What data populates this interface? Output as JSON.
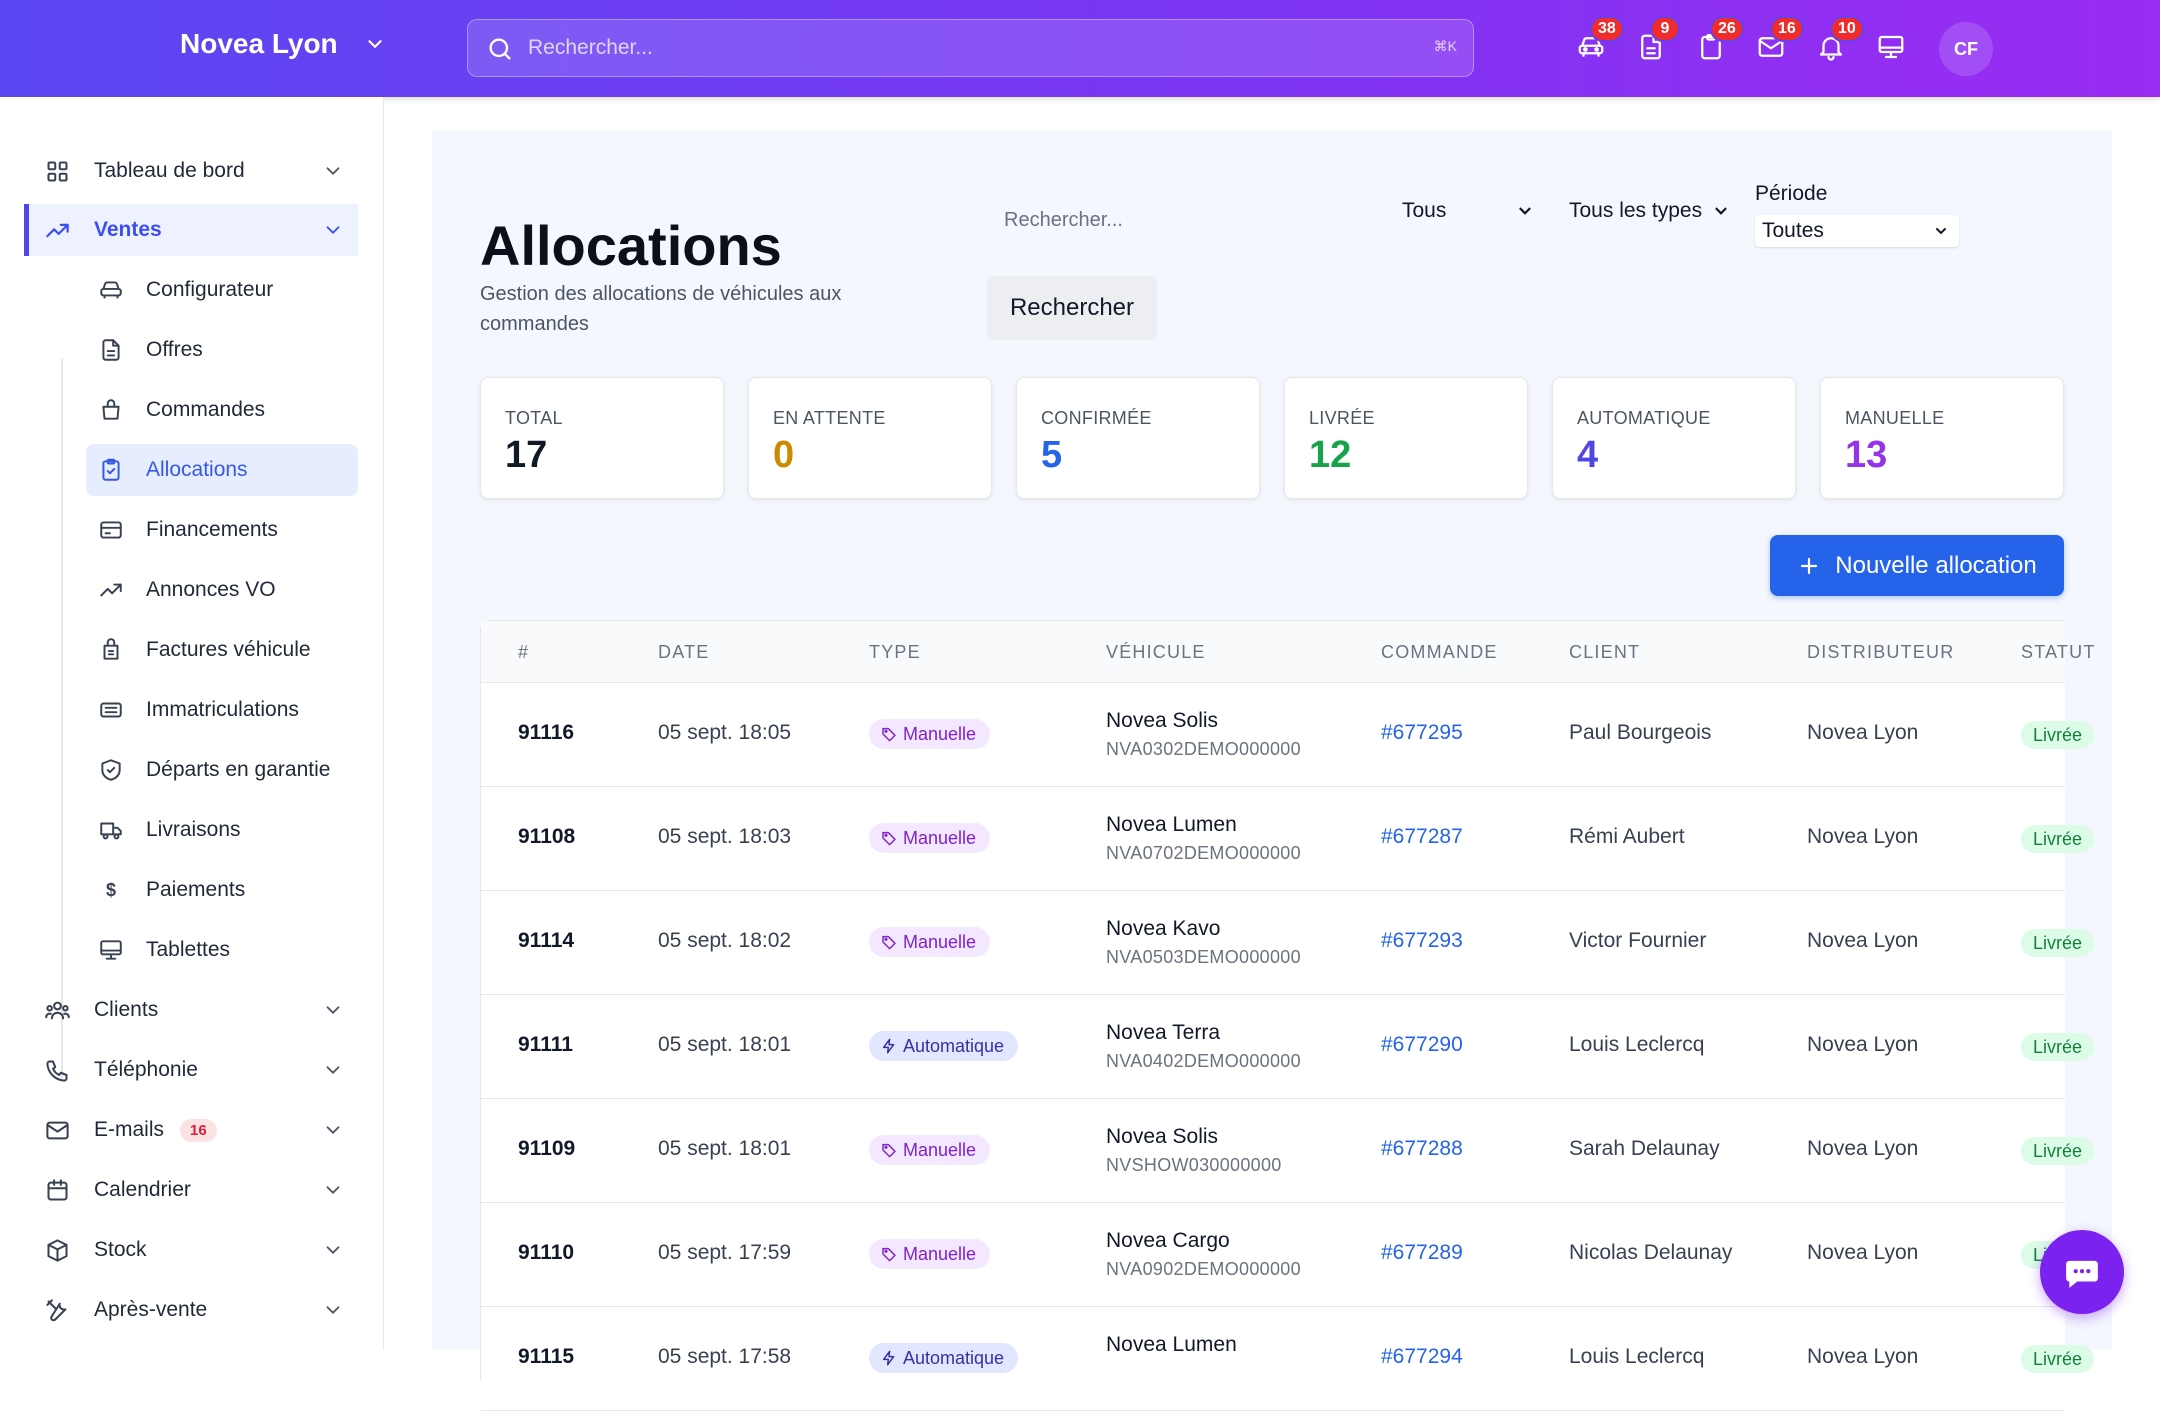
{
  "header": {
    "brand": "Novea Lyon",
    "search_placeholder": "Rechercher...",
    "search_shortcut": "⌘K",
    "icons": [
      {
        "name": "car-icon",
        "badge": "38"
      },
      {
        "name": "document-icon",
        "badge": "9"
      },
      {
        "name": "clipboard-icon",
        "badge": "26"
      },
      {
        "name": "mail-icon",
        "badge": "16"
      },
      {
        "name": "bell-icon",
        "badge": "10"
      },
      {
        "name": "monitor-icon",
        "badge": ""
      }
    ],
    "avatar": "CF"
  },
  "sidebar": {
    "items": [
      {
        "label": "Tableau de bord",
        "icon": "grid-icon"
      },
      {
        "label": "Ventes",
        "icon": "trending-up-icon"
      },
      {
        "label": "Clients",
        "icon": "users-icon"
      },
      {
        "label": "Téléphonie",
        "icon": "phone-icon"
      },
      {
        "label": "E-mails",
        "icon": "mail-icon",
        "badge": "16"
      },
      {
        "label": "Calendrier",
        "icon": "calendar-icon"
      },
      {
        "label": "Stock",
        "icon": "box-icon"
      },
      {
        "label": "Après-vente",
        "icon": "tools-icon"
      }
    ],
    "sub_items": [
      {
        "label": "Configurateur",
        "icon": "car-icon"
      },
      {
        "label": "Offres",
        "icon": "document-icon"
      },
      {
        "label": "Commandes",
        "icon": "bag-icon"
      },
      {
        "label": "Allocations",
        "icon": "clipboard-check-icon"
      },
      {
        "label": "Financements",
        "icon": "credit-card-icon"
      },
      {
        "label": "Annonces VO",
        "icon": "trending-up-icon"
      },
      {
        "label": "Factures véhicule",
        "icon": "receipt-icon"
      },
      {
        "label": "Immatriculations",
        "icon": "id-card-icon"
      },
      {
        "label": "Départs en garantie",
        "icon": "shield-icon"
      },
      {
        "label": "Livraisons",
        "icon": "truck-icon"
      },
      {
        "label": "Paiements",
        "icon": "dollar-icon",
        "glyph": "$"
      },
      {
        "label": "Tablettes",
        "icon": "monitor-icon"
      }
    ]
  },
  "page": {
    "title": "Allocations",
    "subtitle": "Gestion des allocations de véhicules aux commandes",
    "search_placeholder": "Rechercher...",
    "search_button": "Rechercher",
    "status_filter": "Tous",
    "type_filter": "Tous les types",
    "period_label": "Période",
    "period_value": "Toutes",
    "new_button": "Nouvelle allocation"
  },
  "stats": [
    {
      "label": "TOTAL",
      "value": "17",
      "color": "#111827"
    },
    {
      "label": "EN ATTENTE",
      "value": "0",
      "color": "#ca8a04"
    },
    {
      "label": "CONFIRMÉE",
      "value": "5",
      "color": "#2563eb"
    },
    {
      "label": "LIVRÉE",
      "value": "12",
      "color": "#16a34a"
    },
    {
      "label": "AUTOMATIQUE",
      "value": "4",
      "color": "#4f46e5"
    },
    {
      "label": "MANUELLE",
      "value": "13",
      "color": "#9333ea"
    }
  ],
  "table": {
    "headers": [
      "#",
      "DATE",
      "TYPE",
      "VÉHICULE",
      "COMMANDE",
      "CLIENT",
      "DISTRIBUTEUR",
      "STATUT"
    ],
    "rows": [
      {
        "id": "91116",
        "date": "05 sept. 18:05",
        "type": "Manuelle",
        "kind": "manuelle",
        "vehicle": "Novea Solis",
        "vin": "NVA0302DEMO000000",
        "order": "#677295",
        "client": "Paul Bourgeois",
        "dealer": "Novea Lyon",
        "status": "Livrée"
      },
      {
        "id": "91108",
        "date": "05 sept. 18:03",
        "type": "Manuelle",
        "kind": "manuelle",
        "vehicle": "Novea Lumen",
        "vin": "NVA0702DEMO000000",
        "order": "#677287",
        "client": "Rémi Aubert",
        "dealer": "Novea Lyon",
        "status": "Livrée"
      },
      {
        "id": "91114",
        "date": "05 sept. 18:02",
        "type": "Manuelle",
        "kind": "manuelle",
        "vehicle": "Novea Kavo",
        "vin": "NVA0503DEMO000000",
        "order": "#677293",
        "client": "Victor Fournier",
        "dealer": "Novea Lyon",
        "status": "Livrée"
      },
      {
        "id": "91111",
        "date": "05 sept. 18:01",
        "type": "Automatique",
        "kind": "auto",
        "vehicle": "Novea Terra",
        "vin": "NVA0402DEMO000000",
        "order": "#677290",
        "client": "Louis Leclercq",
        "dealer": "Novea Lyon",
        "status": "Livrée"
      },
      {
        "id": "91109",
        "date": "05 sept. 18:01",
        "type": "Manuelle",
        "kind": "manuelle",
        "vehicle": "Novea Solis",
        "vin": "NVSHOW030000000",
        "order": "#677288",
        "client": "Sarah Delaunay",
        "dealer": "Novea Lyon",
        "status": "Livrée"
      },
      {
        "id": "91110",
        "date": "05 sept. 17:59",
        "type": "Manuelle",
        "kind": "manuelle",
        "vehicle": "Novea Cargo",
        "vin": "NVA0902DEMO000000",
        "order": "#677289",
        "client": "Nicolas Delaunay",
        "dealer": "Novea Lyon",
        "status": "Livrée"
      },
      {
        "id": "91115",
        "date": "05 sept. 17:58",
        "type": "Automatique",
        "kind": "auto",
        "vehicle": "Novea Lumen",
        "vin": "",
        "order": "#677294",
        "client": "Louis Leclercq",
        "dealer": "Novea Lyon",
        "status": "Livrée"
      }
    ]
  }
}
